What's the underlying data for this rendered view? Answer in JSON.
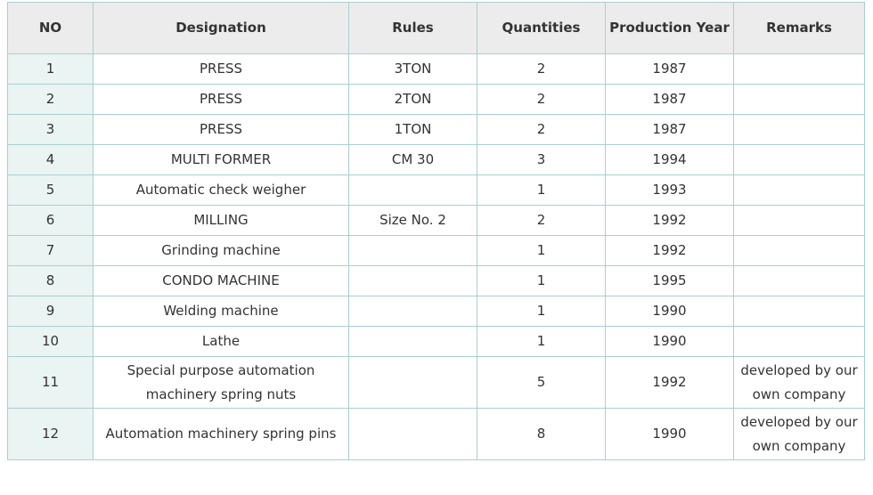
{
  "colors": {
    "border": "#a9cfd0",
    "header_bg": "#ececec",
    "no_column_bg": "#e9f4f3",
    "text": "#333333"
  },
  "table": {
    "headers": {
      "no": "NO",
      "designation": "Designation",
      "rules": "Rules",
      "quantities": "Quantities",
      "production_year": "Production Year",
      "remarks": "Remarks"
    },
    "rows": [
      {
        "no": "1",
        "designation": "PRESS",
        "rules": "3TON",
        "quantities": "2",
        "year": "1987",
        "remarks": ""
      },
      {
        "no": "2",
        "designation": "PRESS",
        "rules": "2TON",
        "quantities": "2",
        "year": "1987",
        "remarks": ""
      },
      {
        "no": "3",
        "designation": "PRESS",
        "rules": "1TON",
        "quantities": "2",
        "year": "1987",
        "remarks": ""
      },
      {
        "no": "4",
        "designation": "MULTI FORMER",
        "rules": "CM 30",
        "quantities": "3",
        "year": "1994",
        "remarks": ""
      },
      {
        "no": "5",
        "designation": "Automatic check weigher",
        "rules": "",
        "quantities": "1",
        "year": "1993",
        "remarks": ""
      },
      {
        "no": "6",
        "designation": "MILLING",
        "rules": "Size No. 2",
        "quantities": "2",
        "year": "1992",
        "remarks": ""
      },
      {
        "no": "7",
        "designation": "Grinding machine",
        "rules": "",
        "quantities": "1",
        "year": "1992",
        "remarks": ""
      },
      {
        "no": "8",
        "designation": "CONDO MACHINE",
        "rules": "",
        "quantities": "1",
        "year": "1995",
        "remarks": ""
      },
      {
        "no": "9",
        "designation": "Welding machine",
        "rules": "",
        "quantities": "1",
        "year": "1990",
        "remarks": ""
      },
      {
        "no": "10",
        "designation": "Lathe",
        "rules": "",
        "quantities": "1",
        "year": "1990",
        "remarks": ""
      },
      {
        "no": "11",
        "designation": "Special purpose automation machinery spring nuts",
        "rules": "",
        "quantities": "5",
        "year": "1992",
        "remarks": "developed by our own company"
      },
      {
        "no": "12",
        "designation": "Automation machinery spring pins",
        "rules": "",
        "quantities": "8",
        "year": "1990",
        "remarks": "developed by our own company"
      }
    ]
  }
}
